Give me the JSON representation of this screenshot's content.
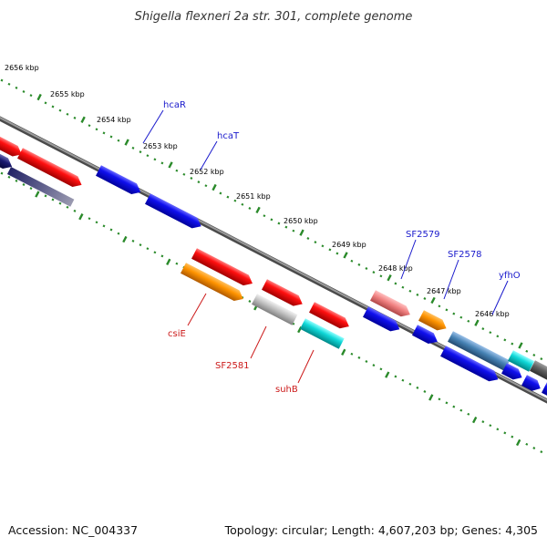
{
  "title": "Shigella flexneri 2a str. 301, complete genome",
  "footer": {
    "accession": "Accession: NC_004337",
    "summary": "Topology: circular; Length: 4,607,203 bp; Genes: 4,305"
  },
  "colors": {
    "backbone": "#7f7f7f",
    "ruler": "#2a8a2a",
    "label_top": "#1a1acc",
    "label_bottom": "#cc1a1a"
  },
  "ticks": [
    "2656 kbp",
    "2655 kbp",
    "2654 kbp",
    "2653 kbp",
    "2652 kbp",
    "2651 kbp",
    "2650 kbp",
    "2649 kbp",
    "2648 kbp",
    "2647 kbp",
    "2646 kbp"
  ],
  "top_labels": [
    "hcaR",
    "hcaT",
    "SF2579",
    "SF2578",
    "yfhO"
  ],
  "bottom_labels": [
    "csiE",
    "SF2581",
    "suhB"
  ]
}
